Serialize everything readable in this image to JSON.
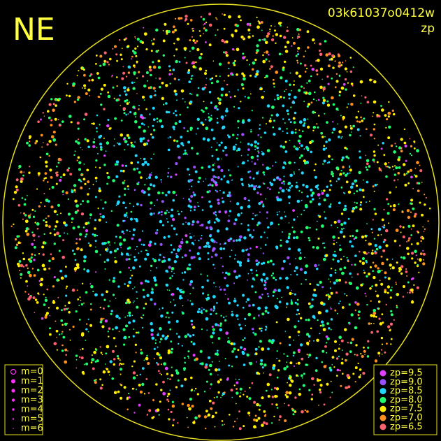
{
  "header": {
    "site": "NE",
    "image_id": "03k61037o0412w",
    "mode": "zp"
  },
  "legend_magnitude": [
    "m=0",
    "m=1",
    "m=2",
    "m=3",
    "m=4",
    "m=5",
    "m=6"
  ],
  "legend_zp": [
    {
      "label": "zp=9.5",
      "color": "#e040ff"
    },
    {
      "label": "zp=9.0",
      "color": "#9a50ff"
    },
    {
      "label": "zp=8.5",
      "color": "#20d8ff"
    },
    {
      "label": "zp=8.0",
      "color": "#20ff70"
    },
    {
      "label": "zp=7.5",
      "color": "#ffee00"
    },
    {
      "label": "zp=7.0",
      "color": "#ff9020"
    },
    {
      "label": "zp=6.5",
      "color": "#ff6070"
    }
  ]
}
